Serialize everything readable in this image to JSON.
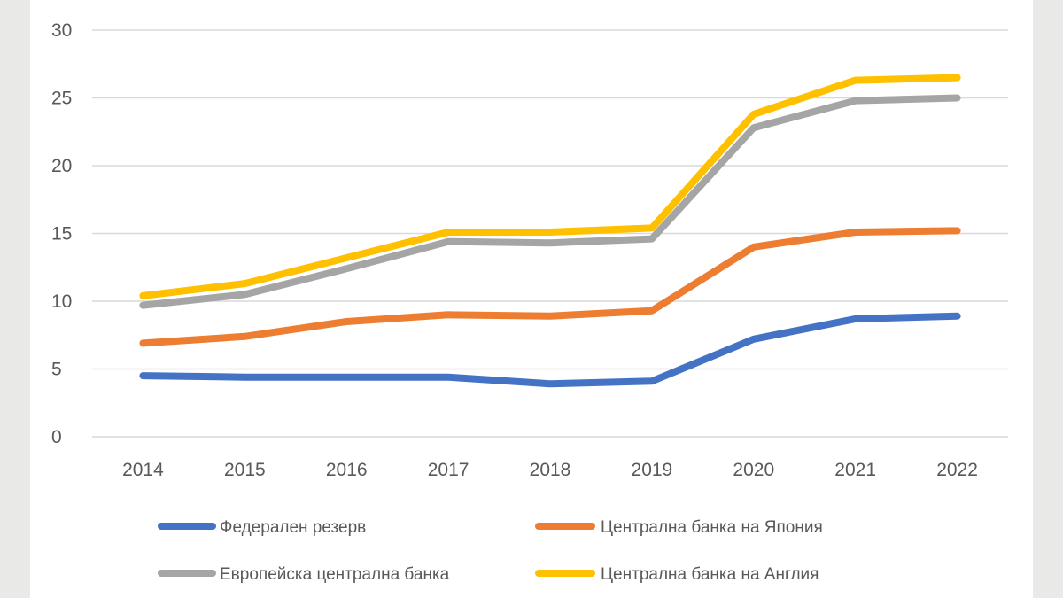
{
  "chart_data": {
    "type": "line",
    "x": [
      "2014",
      "2015",
      "2016",
      "2017",
      "2018",
      "2019",
      "2020",
      "2021",
      "2022"
    ],
    "ylim": [
      0,
      30
    ],
    "yticks": [
      0,
      5,
      10,
      15,
      20,
      25,
      30
    ],
    "grid": true,
    "legend_position": "bottom",
    "series": [
      {
        "name": "Федерален резерв",
        "color": "#4472c4",
        "values": [
          4.5,
          4.4,
          4.4,
          4.4,
          3.9,
          4.1,
          7.2,
          8.7,
          8.9
        ]
      },
      {
        "name": "Централна банка на Япония",
        "color": "#ed7d31",
        "values": [
          6.9,
          7.4,
          8.5,
          9.0,
          8.9,
          9.3,
          14.0,
          15.1,
          15.2
        ]
      },
      {
        "name": "Европейска централна банка",
        "color": "#a5a5a5",
        "values": [
          9.7,
          10.5,
          12.4,
          14.4,
          14.3,
          14.6,
          22.8,
          24.8,
          25.0
        ]
      },
      {
        "name": "Централна банка на Англия",
        "color": "#ffc000",
        "values": [
          10.4,
          11.3,
          13.2,
          15.1,
          15.1,
          15.4,
          23.8,
          26.3,
          26.5
        ]
      }
    ]
  }
}
